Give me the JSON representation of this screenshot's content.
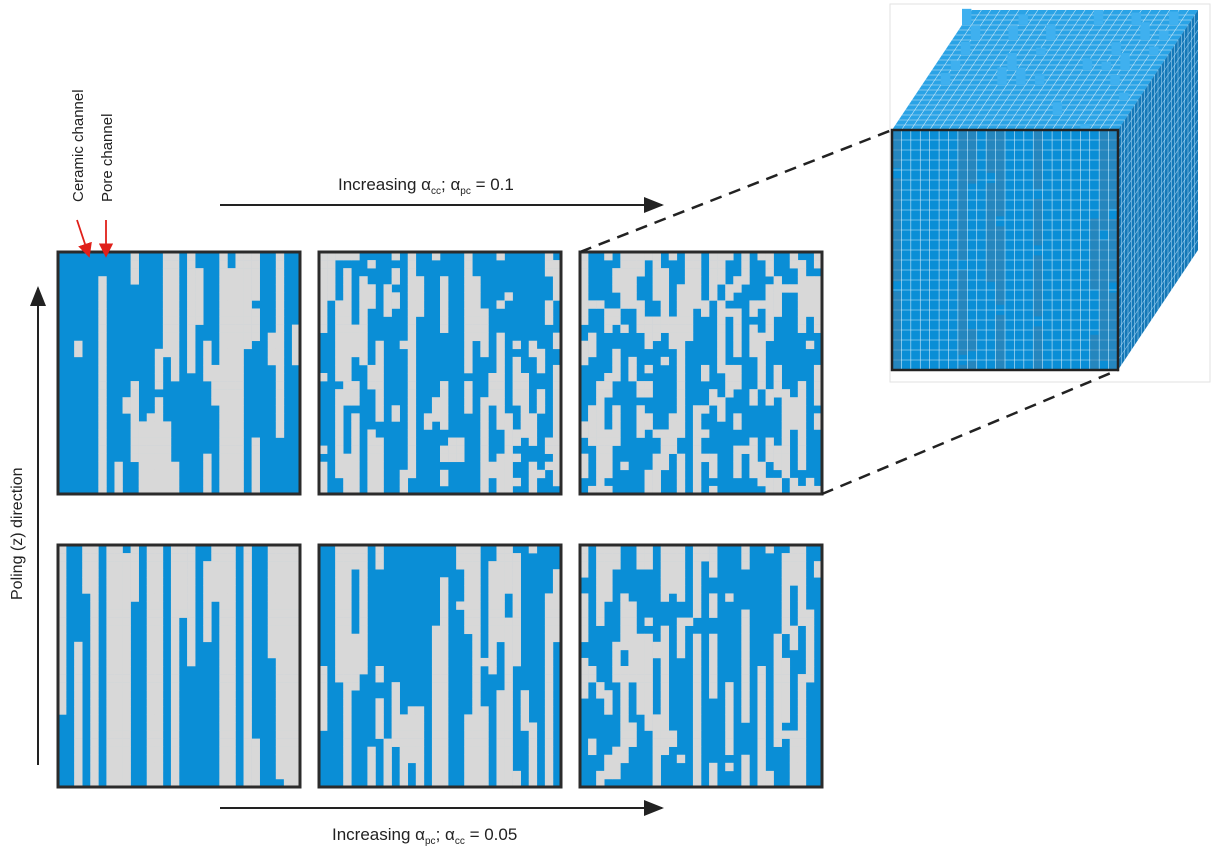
{
  "labels": {
    "ceramic_channel": "Ceramic channel",
    "pore_channel": "Pore channel",
    "poling_direction": "Poling (z) direction",
    "top_arrow": {
      "prefix": "Increasing α",
      "sub1": "cc",
      "middle": "; α",
      "sub2": "pc",
      "suffix": " = 0.1"
    },
    "bottom_arrow": {
      "prefix": "Increasing α",
      "sub1": "pc",
      "middle": "; α",
      "sub2": "cc",
      "suffix": " = 0.05"
    }
  },
  "colors": {
    "ceramic": "#0a8ed6",
    "pore": "#d8d8d8",
    "frame": "#2b2b2b",
    "pointer": "#e0201a",
    "cube_top": "#2aa3e6",
    "cube_side": "#1478b8"
  },
  "panels": {
    "rows": 2,
    "cols": 3,
    "grid_cells": 30,
    "top_row_description": "increasing ceramic-channel alpha",
    "bottom_row_description": "increasing pore-channel alpha"
  }
}
